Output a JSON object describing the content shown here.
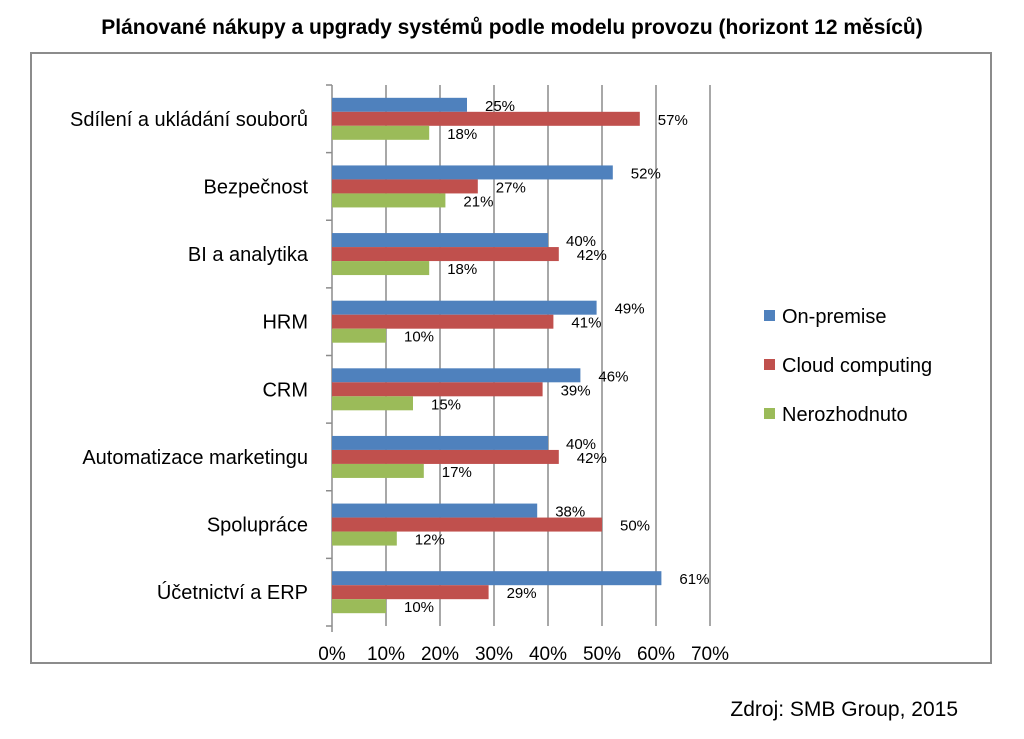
{
  "chart_data": {
    "type": "bar",
    "orientation": "horizontal",
    "title": "Plánované nákupy a upgrady systémů podle modelu provozu (horizont 12 měsíců)",
    "categories": [
      "Sdílení a ukládání souborů",
      "Bezpečnost",
      "BI a analytika",
      "HRM",
      "CRM",
      "Automatizace marketingu",
      "Spolupráce",
      "Účetnictví a ERP"
    ],
    "series": [
      {
        "name": "On-premise",
        "color": "#4f81bd",
        "values": [
          25,
          52,
          40,
          49,
          46,
          40,
          38,
          61
        ],
        "labels": [
          "25%",
          "52%",
          "40%",
          "49%",
          "46%",
          "40%",
          "38%",
          "61%"
        ]
      },
      {
        "name": "Cloud computing",
        "color": "#c0504d",
        "values": [
          57,
          27,
          42,
          41,
          39,
          42,
          50,
          29
        ],
        "labels": [
          "57%",
          "27%",
          "42%",
          "41%",
          "39%",
          "42%",
          "50%",
          "29%"
        ]
      },
      {
        "name": "Nerozhodnuto",
        "color": "#9bbb59",
        "values": [
          18,
          21,
          18,
          10,
          15,
          17,
          12,
          10
        ],
        "labels": [
          "18%",
          "21%",
          "18%",
          "10%",
          "15%",
          "17%",
          "12%",
          "10%"
        ]
      }
    ],
    "xlim": [
      0,
      70
    ],
    "xticks": [
      0,
      10,
      20,
      30,
      40,
      50,
      60,
      70
    ],
    "xtick_labels": [
      "0%",
      "10%",
      "20%",
      "30%",
      "40%",
      "50%",
      "60%",
      "70%"
    ],
    "grid": "vertical",
    "legend_position": "right"
  },
  "source": "Zdroj: SMB Group, 2015"
}
